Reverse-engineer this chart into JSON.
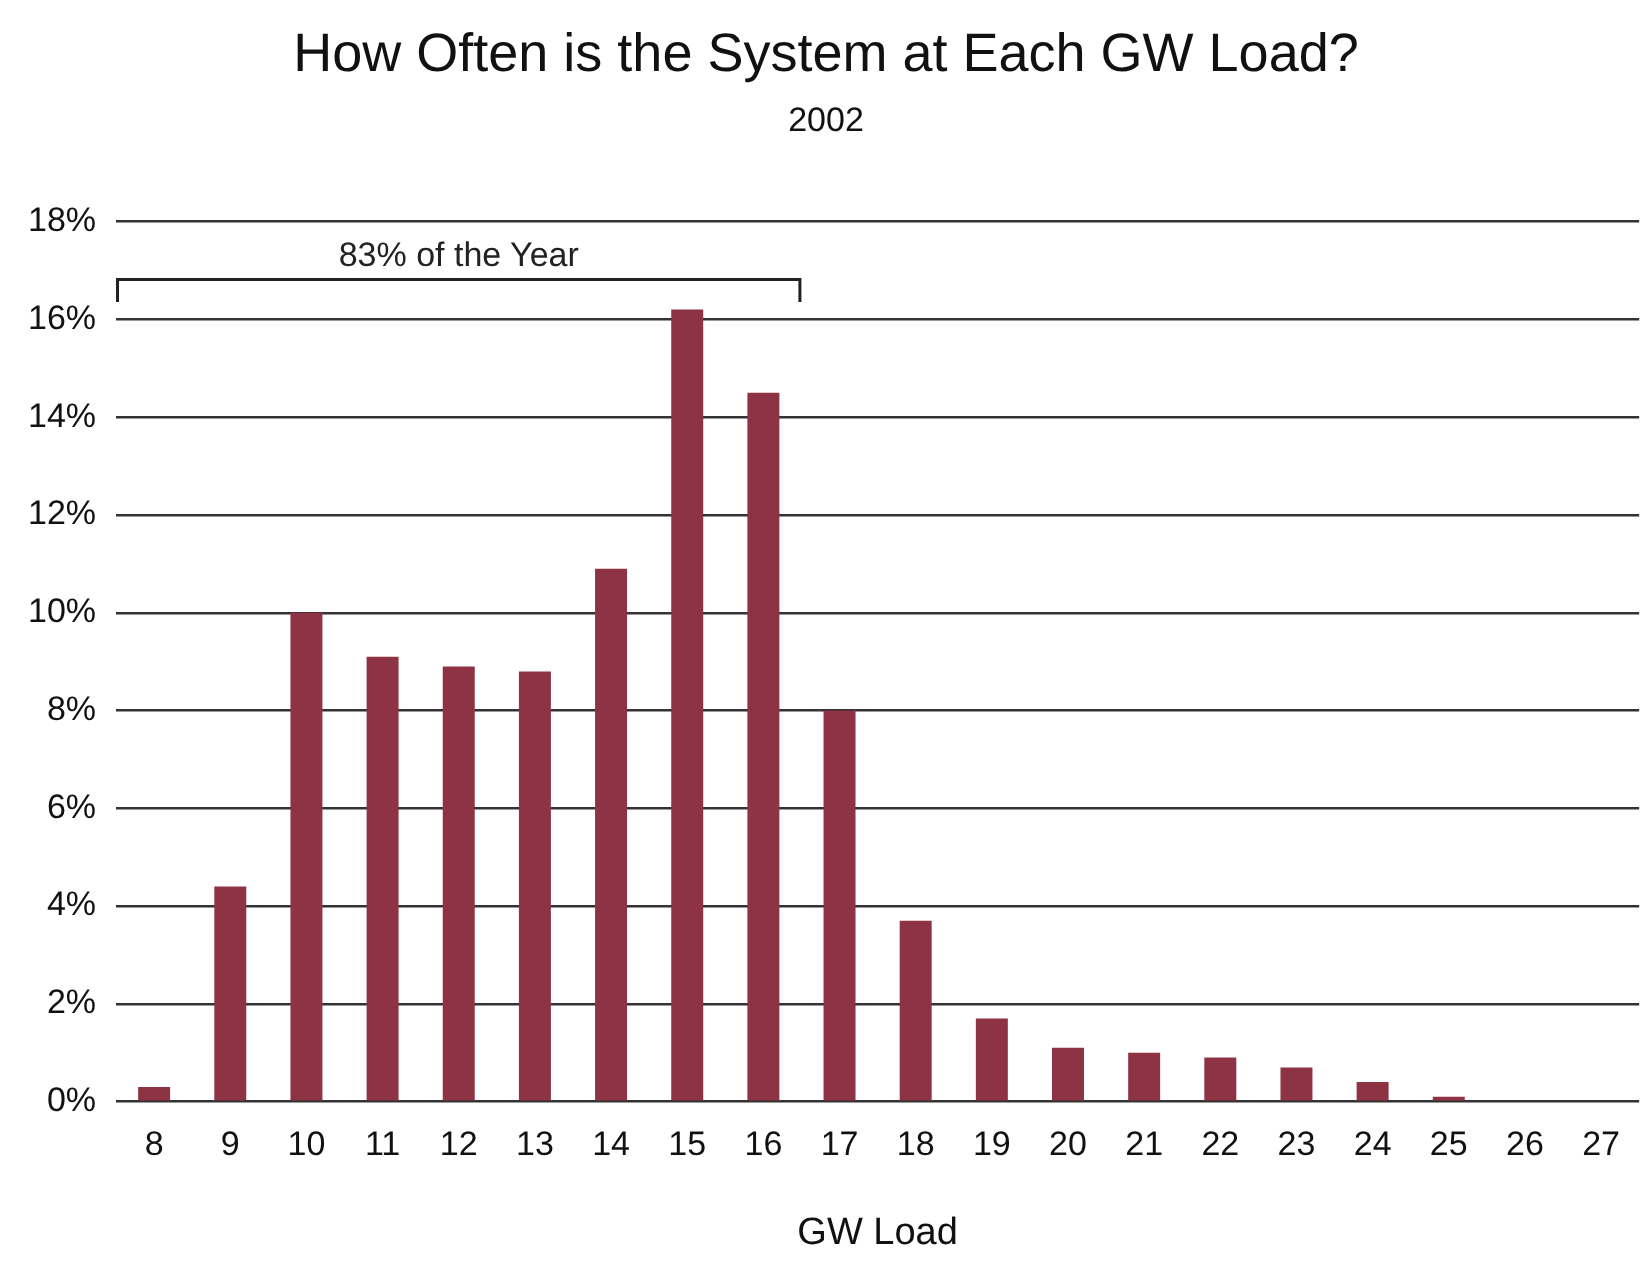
{
  "chart_data": {
    "type": "bar",
    "title": "How Often is the System at Each GW Load?",
    "subtitle": "2002",
    "xlabel": "GW Load",
    "categories": [
      "8",
      "9",
      "10",
      "11",
      "12",
      "13",
      "14",
      "15",
      "16",
      "17",
      "18",
      "19",
      "20",
      "21",
      "22",
      "23",
      "24",
      "25",
      "26",
      "27"
    ],
    "values": [
      0.3,
      4.4,
      10.0,
      9.1,
      8.9,
      8.8,
      10.9,
      16.2,
      14.5,
      8.0,
      3.7,
      1.7,
      1.1,
      1.0,
      0.9,
      0.7,
      0.4,
      0.1,
      0,
      0
    ],
    "color": "#8e3344",
    "ylim": [
      0,
      18
    ],
    "yticks": [
      {
        "value": 0,
        "label": "0%"
      },
      {
        "value": 2,
        "label": "2%"
      },
      {
        "value": 4,
        "label": "4%"
      },
      {
        "value": 6,
        "label": "6%"
      },
      {
        "value": 8,
        "label": "8%"
      },
      {
        "value": 10,
        "label": "10%"
      },
      {
        "value": 12,
        "label": "12%"
      },
      {
        "value": 14,
        "label": "14%"
      },
      {
        "value": 16,
        "label": "16%"
      },
      {
        "value": 18,
        "label": "18%"
      }
    ],
    "grid": "y",
    "legend": false,
    "annotations": [
      "83% of the Year"
    ]
  }
}
